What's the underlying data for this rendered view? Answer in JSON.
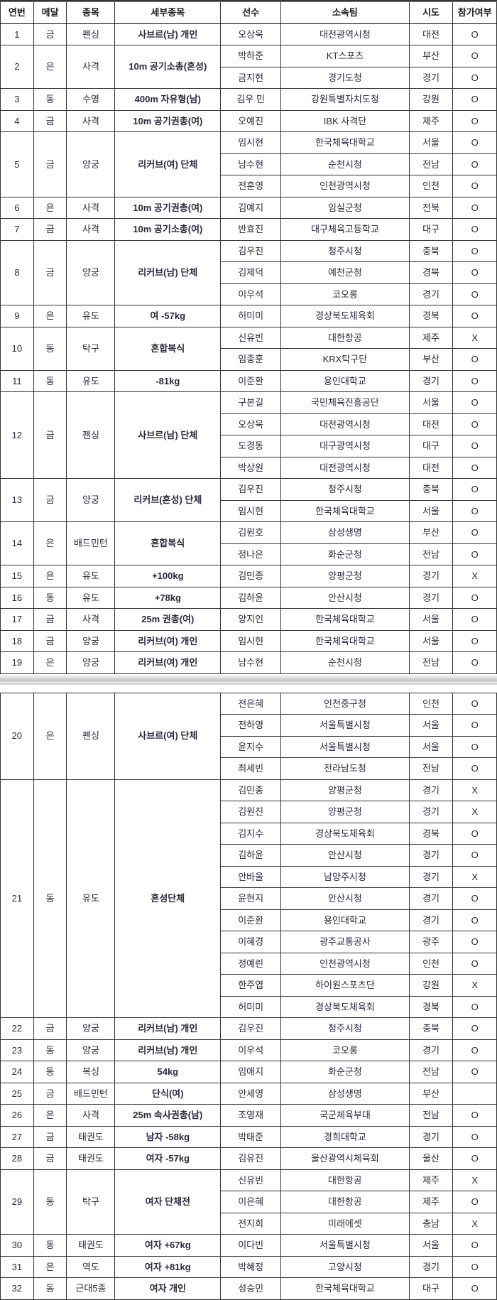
{
  "headers": {
    "no": "연번",
    "medal": "메달",
    "sport": "종목",
    "event": "세부종목",
    "athlete": "선수",
    "team": "소속팀",
    "region": "시도",
    "participate": "참가여부"
  },
  "rows": [
    {
      "no": "1",
      "medal": "금",
      "sport": "펜싱",
      "event": "사브르(남) 개인",
      "athletes": [
        {
          "name": "오상욱",
          "team": "대전광역시청",
          "region": "대전",
          "p": "O"
        }
      ]
    },
    {
      "no": "2",
      "medal": "은",
      "sport": "사격",
      "event": "10m 공기소총(혼성)",
      "athletes": [
        {
          "name": "박하준",
          "team": "KT스포츠",
          "region": "부산",
          "p": "O"
        },
        {
          "name": "금지현",
          "team": "경기도청",
          "region": "경기",
          "p": "O"
        }
      ]
    },
    {
      "no": "3",
      "medal": "동",
      "sport": "수영",
      "event": "400m 자유형(남)",
      "athletes": [
        {
          "name": "김우 민",
          "team": "강원특별자치도청",
          "region": "강원",
          "p": "O"
        }
      ]
    },
    {
      "no": "4",
      "medal": "금",
      "sport": "사격",
      "event": "10m 공기권총(여)",
      "athletes": [
        {
          "name": "오예진",
          "team": "IBK 사격단",
          "region": "제주",
          "p": "O"
        }
      ]
    },
    {
      "no": "5",
      "medal": "금",
      "sport": "양궁",
      "event": "리커브(여) 단체",
      "athletes": [
        {
          "name": "임시현",
          "team": "한국체육대학교",
          "region": "서울",
          "p": "O"
        },
        {
          "name": "남수현",
          "team": "순천시청",
          "region": "전남",
          "p": "O"
        },
        {
          "name": "전훈영",
          "team": "인천광역시청",
          "region": "인천",
          "p": "O"
        }
      ]
    },
    {
      "no": "6",
      "medal": "은",
      "sport": "사격",
      "event": "10m 공기권총(여)",
      "athletes": [
        {
          "name": "김예지",
          "team": "임실군청",
          "region": "전북",
          "p": "O"
        }
      ]
    },
    {
      "no": "7",
      "medal": "금",
      "sport": "사격",
      "event": "10m 공기소총(여)",
      "athletes": [
        {
          "name": "반효진",
          "team": "대구체육고등학교",
          "region": "대구",
          "p": "O"
        }
      ]
    },
    {
      "no": "8",
      "medal": "금",
      "sport": "양궁",
      "event": "리커브(남) 단체",
      "athletes": [
        {
          "name": "김우진",
          "team": "청주시청",
          "region": "충북",
          "p": "O"
        },
        {
          "name": "김제덕",
          "team": "예천군청",
          "region": "경북",
          "p": "O"
        },
        {
          "name": "이우석",
          "team": "코오롱",
          "region": "경기",
          "p": "O"
        }
      ]
    },
    {
      "no": "9",
      "medal": "은",
      "sport": "유도",
      "event": "여 -57kg",
      "athletes": [
        {
          "name": "허미미",
          "team": "경상북도체육회",
          "region": "경북",
          "p": "O"
        }
      ]
    },
    {
      "no": "10",
      "medal": "동",
      "sport": "탁구",
      "event": "혼합복식",
      "athletes": [
        {
          "name": "신유빈",
          "team": "대한항공",
          "region": "제주",
          "p": "X"
        },
        {
          "name": "임종훈",
          "team": "KRX탁구단",
          "region": "부산",
          "p": "O"
        }
      ]
    },
    {
      "no": "11",
      "medal": "동",
      "sport": "유도",
      "event": "-81kg",
      "athletes": [
        {
          "name": "이준환",
          "team": "용인대학교",
          "region": "경기",
          "p": "O"
        }
      ]
    },
    {
      "no": "12",
      "medal": "금",
      "sport": "펜싱",
      "event": "사브르(남) 단체",
      "athletes": [
        {
          "name": "구본길",
          "team": "국민체육진흥공단",
          "region": "서울",
          "p": "O"
        },
        {
          "name": "오상욱",
          "team": "대전광역시청",
          "region": "대전",
          "p": "O"
        },
        {
          "name": "도경동",
          "team": "대구광역시청",
          "region": "대구",
          "p": "O"
        },
        {
          "name": "박상원",
          "team": "대전광역시청",
          "region": "대전",
          "p": "O"
        }
      ]
    },
    {
      "no": "13",
      "medal": "금",
      "sport": "양궁",
      "event": "리커브(혼성) 단체",
      "athletes": [
        {
          "name": "김우진",
          "team": "청주시청",
          "region": "충북",
          "p": "O"
        },
        {
          "name": "임시현",
          "team": "한국체육대학교",
          "region": "서울",
          "p": "O"
        }
      ]
    },
    {
      "no": "14",
      "medal": "은",
      "sport": "배드민턴",
      "event": "혼합복식",
      "athletes": [
        {
          "name": "김원호",
          "team": "삼성생명",
          "region": "부산",
          "p": "O"
        },
        {
          "name": "정나은",
          "team": "화순군청",
          "region": "전남",
          "p": "O"
        }
      ]
    },
    {
      "no": "15",
      "medal": "은",
      "sport": "유도",
      "event": "+100kg",
      "athletes": [
        {
          "name": "김민종",
          "team": "양평군청",
          "region": "경기",
          "p": "X"
        }
      ]
    },
    {
      "no": "16",
      "medal": "동",
      "sport": "유도",
      "event": "+78kg",
      "athletes": [
        {
          "name": "김하윤",
          "team": "안산시청",
          "region": "경기",
          "p": "O"
        }
      ]
    },
    {
      "no": "17",
      "medal": "금",
      "sport": "사격",
      "event": "25m 권총(여)",
      "athletes": [
        {
          "name": "양지인",
          "team": "한국체육대학교",
          "region": "서울",
          "p": "O"
        }
      ]
    },
    {
      "no": "18",
      "medal": "금",
      "sport": "양궁",
      "event": "리커브(여) 개인",
      "athletes": [
        {
          "name": "임시현",
          "team": "한국체육대학교",
          "region": "서울",
          "p": "O"
        }
      ]
    },
    {
      "no": "19",
      "medal": "은",
      "sport": "양궁",
      "event": "리커브(여) 개인",
      "athletes": [
        {
          "name": "남수현",
          "team": "순천시청",
          "region": "전남",
          "p": "O"
        }
      ]
    }
  ],
  "rows2": [
    {
      "no": "20",
      "medal": "은",
      "sport": "펜싱",
      "event": "사브르(여) 단체",
      "athletes": [
        {
          "name": "전은혜",
          "team": "인천중구청",
          "region": "인천",
          "p": "O"
        },
        {
          "name": "전하영",
          "team": "서울특별시청",
          "region": "서울",
          "p": "O"
        },
        {
          "name": "윤지수",
          "team": "서울특별시청",
          "region": "서울",
          "p": "O"
        },
        {
          "name": "최세빈",
          "team": "전라남도청",
          "region": "전남",
          "p": "O"
        }
      ]
    },
    {
      "no": "21",
      "medal": "동",
      "sport": "유도",
      "event": "혼성단체",
      "athletes": [
        {
          "name": "김민종",
          "team": "양평군청",
          "region": "경기",
          "p": "X"
        },
        {
          "name": "김원진",
          "team": "양평군청",
          "region": "경기",
          "p": "X"
        },
        {
          "name": "김지수",
          "team": "경상북도체육회",
          "region": "경북",
          "p": "O"
        },
        {
          "name": "김하윤",
          "team": "안산시청",
          "region": "경기",
          "p": "O"
        },
        {
          "name": "안바울",
          "team": "남양주시청",
          "region": "경기",
          "p": "X"
        },
        {
          "name": "윤현지",
          "team": "안산시청",
          "region": "경기",
          "p": "O"
        },
        {
          "name": "이준환",
          "team": "용인대학교",
          "region": "경기",
          "p": "O"
        },
        {
          "name": "이혜경",
          "team": "광주교통공사",
          "region": "광주",
          "p": "O"
        },
        {
          "name": "정예린",
          "team": "인천광역시청",
          "region": "인천",
          "p": "O"
        },
        {
          "name": "한주엽",
          "team": "하이원스포츠단",
          "region": "강원",
          "p": "X"
        },
        {
          "name": "허미미",
          "team": "경상북도체육회",
          "region": "경북",
          "p": "O"
        }
      ]
    },
    {
      "no": "22",
      "medal": "금",
      "sport": "양궁",
      "event": "리커브(남) 개인",
      "athletes": [
        {
          "name": "김우진",
          "team": "청주시청",
          "region": "충북",
          "p": "O"
        }
      ]
    },
    {
      "no": "23",
      "medal": "동",
      "sport": "양궁",
      "event": "리커브(남) 개인",
      "athletes": [
        {
          "name": "이우석",
          "team": "코오롱",
          "region": "경기",
          "p": "O"
        }
      ]
    },
    {
      "no": "24",
      "medal": "동",
      "sport": "복싱",
      "event": "54kg",
      "athletes": [
        {
          "name": "임애지",
          "team": "화순군청",
          "region": "전남",
          "p": "O"
        }
      ]
    },
    {
      "no": "25",
      "medal": "금",
      "sport": "배드민턴",
      "event": "단식(여)",
      "athletes": [
        {
          "name": "안세영",
          "team": "삼성생명",
          "region": "부산",
          "p": ""
        }
      ]
    },
    {
      "no": "26",
      "medal": "은",
      "sport": "사격",
      "event": "25m 속사권총(남)",
      "athletes": [
        {
          "name": "조영재",
          "team": "국군체육부대",
          "region": "전남",
          "p": "O"
        }
      ]
    },
    {
      "no": "27",
      "medal": "금",
      "sport": "태권도",
      "event": "남자 -58kg",
      "athletes": [
        {
          "name": "박태준",
          "team": "경희대학교",
          "region": "경기",
          "p": "O"
        }
      ]
    },
    {
      "no": "28",
      "medal": "금",
      "sport": "태권도",
      "event": "여자 -57kg",
      "athletes": [
        {
          "name": "김유진",
          "team": "울산광역시체육회",
          "region": "울산",
          "p": "O"
        }
      ]
    },
    {
      "no": "29",
      "medal": "동",
      "sport": "탁구",
      "event": "여자 단체전",
      "athletes": [
        {
          "name": "신유빈",
          "team": "대한항공",
          "region": "제주",
          "p": "X"
        },
        {
          "name": "이은혜",
          "team": "대한항공",
          "region": "제주",
          "p": "O"
        },
        {
          "name": "전지희",
          "team": "미래에셋",
          "region": "충남",
          "p": "X"
        }
      ]
    },
    {
      "no": "30",
      "medal": "동",
      "sport": "태권도",
      "event": "여자 +67kg",
      "athletes": [
        {
          "name": "이다빈",
          "team": "서울특별시청",
          "region": "서울",
          "p": "O"
        }
      ]
    },
    {
      "no": "31",
      "medal": "은",
      "sport": "역도",
      "event": "여자 +81kg",
      "athletes": [
        {
          "name": "박혜정",
          "team": "고양시청",
          "region": "경기",
          "p": "O"
        }
      ]
    },
    {
      "no": "32",
      "medal": "동",
      "sport": "근대5종",
      "event": "여자 개인",
      "athletes": [
        {
          "name": "성승민",
          "team": "한국체육대학교",
          "region": "대구",
          "p": "O"
        }
      ]
    }
  ]
}
